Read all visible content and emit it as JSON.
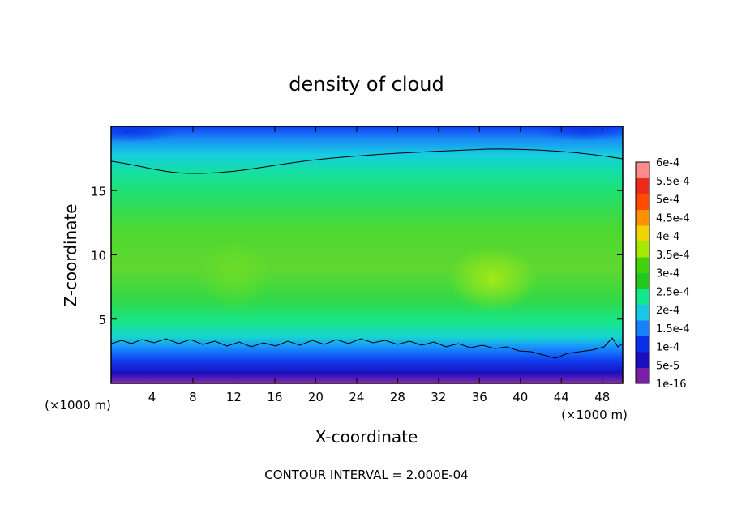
{
  "chart_data": {
    "type": "heatmap",
    "title": "density of cloud",
    "xlabel": "X-coordinate",
    "ylabel": "Z-coordinate",
    "x_unit": "(×1000 m)",
    "y_unit": "(×1000 m)",
    "xlim": [
      0,
      50
    ],
    "ylim": [
      0,
      20
    ],
    "x_ticks": [
      "4",
      "8",
      "12",
      "16",
      "20",
      "24",
      "28",
      "32",
      "36",
      "40",
      "44",
      "48"
    ],
    "y_ticks": [
      "5",
      "10",
      "15"
    ],
    "colorbar": {
      "labels": [
        "1e-16",
        "5e-5",
        "1e-4",
        "1.5e-4",
        "2e-4",
        "2.5e-4",
        "3e-4",
        "3.5e-4",
        "4e-4",
        "4.5e-4",
        "5e-4",
        "5.5e-4",
        "6e-4"
      ],
      "colors": [
        "#7a1fa8",
        "#1a0fc0",
        "#0a2ee8",
        "#1880ff",
        "#16c8e4",
        "#10e88c",
        "#22c81e",
        "#44d20e",
        "#a6e800",
        "#f0d400",
        "#ff9000",
        "#ff4a00",
        "#f02a1a",
        "#ff8a8a"
      ]
    },
    "contour_interval": "CONTOUR INTERVAL = 2.000E-04",
    "grid": false,
    "legend": "right-colorbar"
  }
}
